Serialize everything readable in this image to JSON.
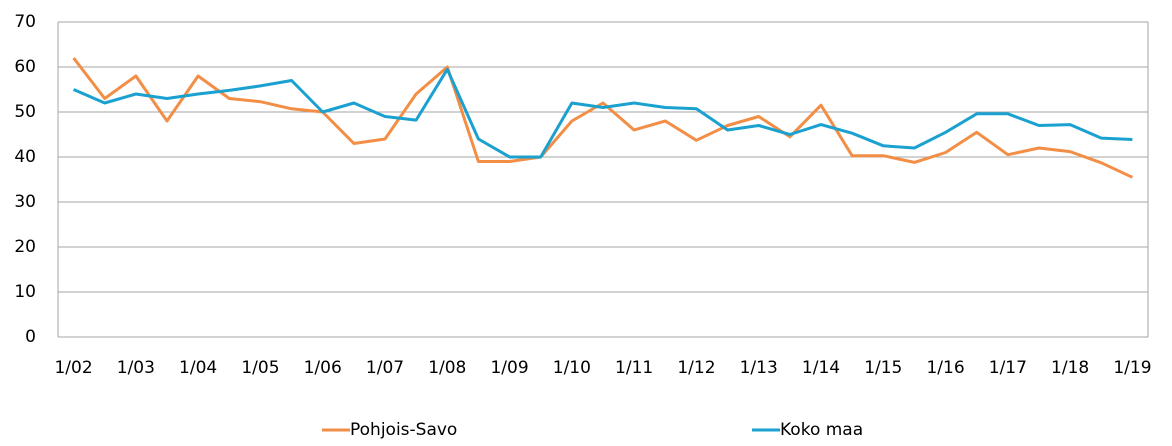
{
  "chart_data": {
    "type": "line",
    "categories": [
      "1/02",
      null,
      "1/03",
      null,
      "1/04",
      null,
      "1/05",
      null,
      "1/06",
      null,
      "1/07",
      null,
      "1/08",
      null,
      "1/09",
      null,
      "1/10",
      null,
      "1/11",
      null,
      "1/12",
      null,
      "1/13",
      null,
      "1/14",
      null,
      "1/15",
      null,
      "1/16",
      null,
      "1/17",
      null,
      "1/18",
      null,
      "1/19"
    ],
    "series": [
      {
        "name": "Pohjois-Savo",
        "color": "#f28e45",
        "values": [
          62,
          53,
          58,
          48,
          58,
          53,
          52.3,
          50.7,
          50,
          43,
          44,
          54,
          60,
          39,
          39,
          40,
          48,
          52,
          46,
          48,
          43.7,
          47,
          49,
          44.5,
          51.5,
          40.3,
          40.3,
          38.8,
          41,
          45.5,
          40.5,
          42,
          41.2,
          38.7,
          35.5
        ]
      },
      {
        "name": "Koko maa",
        "color": "#1ba1d0",
        "values": [
          55,
          52,
          54,
          53,
          54,
          54.8,
          55.8,
          57,
          50,
          52,
          49,
          48.2,
          59.5,
          44,
          40,
          40,
          52,
          51,
          52,
          51,
          50.7,
          46,
          47,
          45,
          47.2,
          45.3,
          42.5,
          42,
          45.5,
          49.6,
          49.6,
          47,
          47.2,
          44.2,
          43.9
        ]
      }
    ],
    "ylim": [
      0,
      70
    ],
    "yticks": [
      0,
      10,
      20,
      30,
      40,
      50,
      60,
      70
    ],
    "grid": true,
    "legend": "bottom"
  }
}
